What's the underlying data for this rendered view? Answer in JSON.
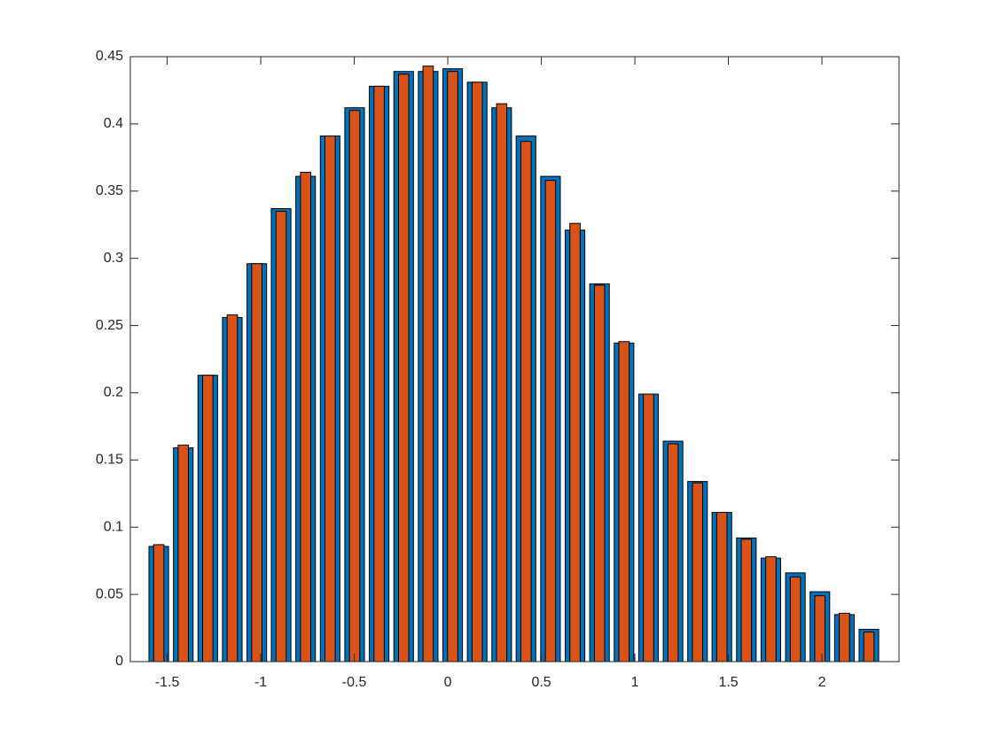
{
  "chart_data": {
    "type": "bar",
    "x": [
      -1.545,
      -1.414,
      -1.283,
      -1.152,
      -1.021,
      -0.891,
      -0.76,
      -0.629,
      -0.498,
      -0.367,
      -0.236,
      -0.105,
      0.026,
      0.157,
      0.288,
      0.418,
      0.549,
      0.68,
      0.811,
      0.942,
      1.073,
      1.204,
      1.335,
      1.465,
      1.596,
      1.727,
      1.858,
      1.989,
      2.12,
      2.251
    ],
    "series": [
      {
        "color": "#0072bd",
        "values": [
          0.0857,
          0.159,
          0.213,
          0.256,
          0.296,
          0.337,
          0.361,
          0.391,
          0.412,
          0.428,
          0.439,
          0.439,
          0.441,
          0.431,
          0.412,
          0.391,
          0.361,
          0.321,
          0.281,
          0.237,
          0.199,
          0.164,
          0.134,
          0.111,
          0.092,
          0.077,
          0.066,
          0.052,
          0.035,
          0.024
        ]
      },
      {
        "color": "#d95319",
        "values": [
          0.087,
          0.161,
          0.213,
          0.258,
          0.296,
          0.335,
          0.364,
          0.391,
          0.41,
          0.428,
          0.437,
          0.443,
          0.439,
          0.431,
          0.415,
          0.387,
          0.358,
          0.326,
          0.28,
          0.238,
          0.199,
          0.162,
          0.133,
          0.111,
          0.091,
          0.078,
          0.063,
          0.049,
          0.036,
          0.022
        ]
      }
    ],
    "xlim": [
      -1.697,
      2.412
    ],
    "ylim": [
      0,
      0.45
    ],
    "xticks": [
      -1.5,
      -1,
      -0.5,
      0,
      0.5,
      1,
      1.5,
      2
    ],
    "yticks": [
      0,
      0.05,
      0.1,
      0.15,
      0.2,
      0.25,
      0.3,
      0.35,
      0.4,
      0.45
    ],
    "grid": false
  }
}
